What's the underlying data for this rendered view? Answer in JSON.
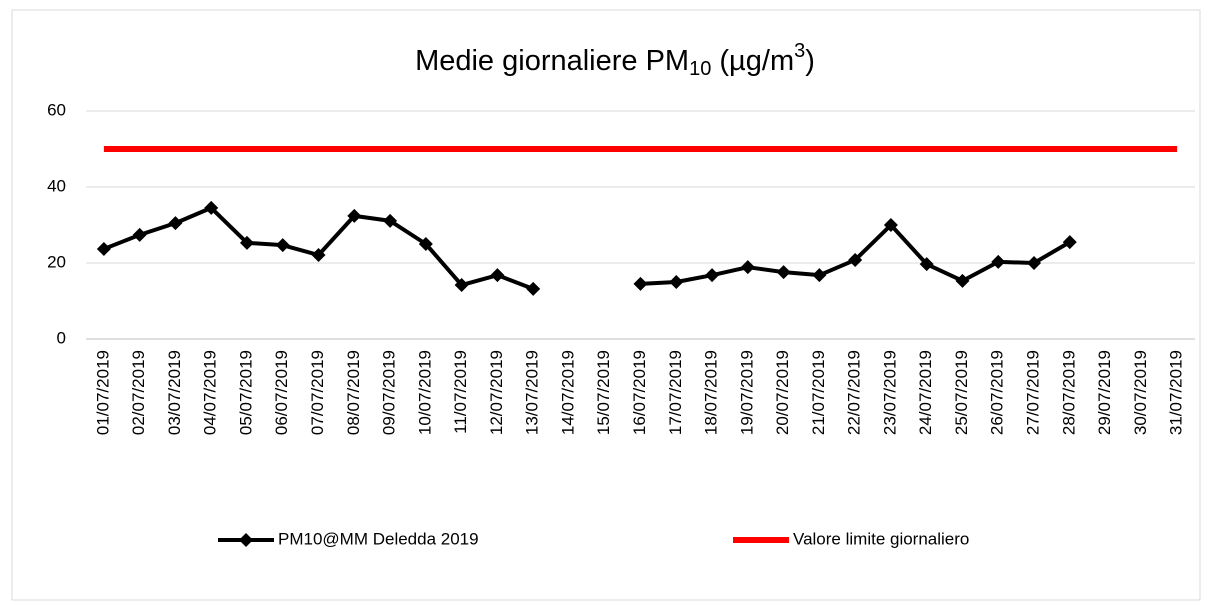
{
  "chart_data": {
    "type": "line",
    "title": [
      "Medie giornaliere PM",
      "10",
      " (µg/m",
      "3",
      ")"
    ],
    "categories": [
      "01/07/2019",
      "02/07/2019",
      "03/07/2019",
      "04/07/2019",
      "05/07/2019",
      "06/07/2019",
      "07/07/2019",
      "08/07/2019",
      "09/07/2019",
      "10/07/2019",
      "11/07/2019",
      "12/07/2019",
      "13/07/2019",
      "14/07/2019",
      "15/07/2019",
      "16/07/2019",
      "17/07/2019",
      "18/07/2019",
      "19/07/2019",
      "20/07/2019",
      "21/07/2019",
      "22/07/2019",
      "23/07/2019",
      "24/07/2019",
      "25/07/2019",
      "26/07/2019",
      "27/07/2019",
      "28/07/2019",
      "29/07/2019",
      "30/07/2019",
      "31/07/2019"
    ],
    "series": [
      {
        "name": "PM10@MM Deledda 2019",
        "color": "#000000",
        "marker": "diamond",
        "values": [
          23.7,
          27.4,
          30.5,
          34.5,
          25.3,
          24.7,
          22.1,
          32.4,
          31.1,
          25,
          14.2,
          16.8,
          13.2,
          null,
          null,
          14.5,
          15,
          16.8,
          18.9,
          17.6,
          16.8,
          20.8,
          30,
          19.7,
          15.3,
          20.3,
          20,
          25.5,
          null,
          null,
          null
        ]
      },
      {
        "name": "Valore limite giornaliero",
        "color": "#ff0000",
        "marker": null,
        "values": [
          50,
          50,
          50,
          50,
          50,
          50,
          50,
          50,
          50,
          50,
          50,
          50,
          50,
          50,
          50,
          50,
          50,
          50,
          50,
          50,
          50,
          50,
          50,
          50,
          50,
          50,
          50,
          50,
          50,
          50,
          50
        ]
      }
    ],
    "ylim": [
      0,
      60
    ],
    "yticks": [
      0,
      20,
      40,
      60
    ],
    "grid": true,
    "legend": "bottom"
  }
}
